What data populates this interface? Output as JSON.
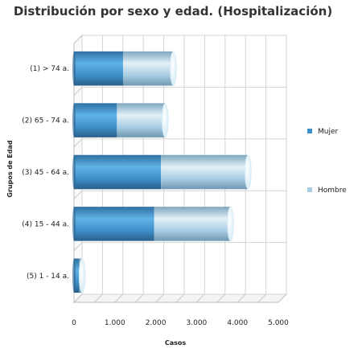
{
  "chart_data": {
    "type": "bar",
    "orientation": "horizontal",
    "stacked": true,
    "title": "Distribución por sexo y edad. (Hospitalización)",
    "xlabel": "Casos",
    "ylabel": "Grupos de Edad",
    "categories": [
      "(1) > 74 a.",
      "(2) 65 - 74 a.",
      "(3) 45 - 64 a.",
      "(4) 15 - 44 a.",
      "(5) 1 - 14 a."
    ],
    "series": [
      {
        "name": "Mujer",
        "values": [
          1200,
          1050,
          2130,
          1960,
          130
        ],
        "color": "#3f8fc8"
      },
      {
        "name": "Hombre",
        "values": [
          1230,
          1180,
          2130,
          1870,
          70
        ],
        "color": "#a8cde3"
      }
    ],
    "xlim": [
      0,
      5000
    ],
    "xticks": [
      "0",
      "1.000",
      "2.000",
      "3.000",
      "4.000",
      "5.000"
    ],
    "xtick_values": [
      0,
      1000,
      2000,
      3000,
      4000,
      5000
    ],
    "grid": true,
    "legend_position": "right"
  }
}
